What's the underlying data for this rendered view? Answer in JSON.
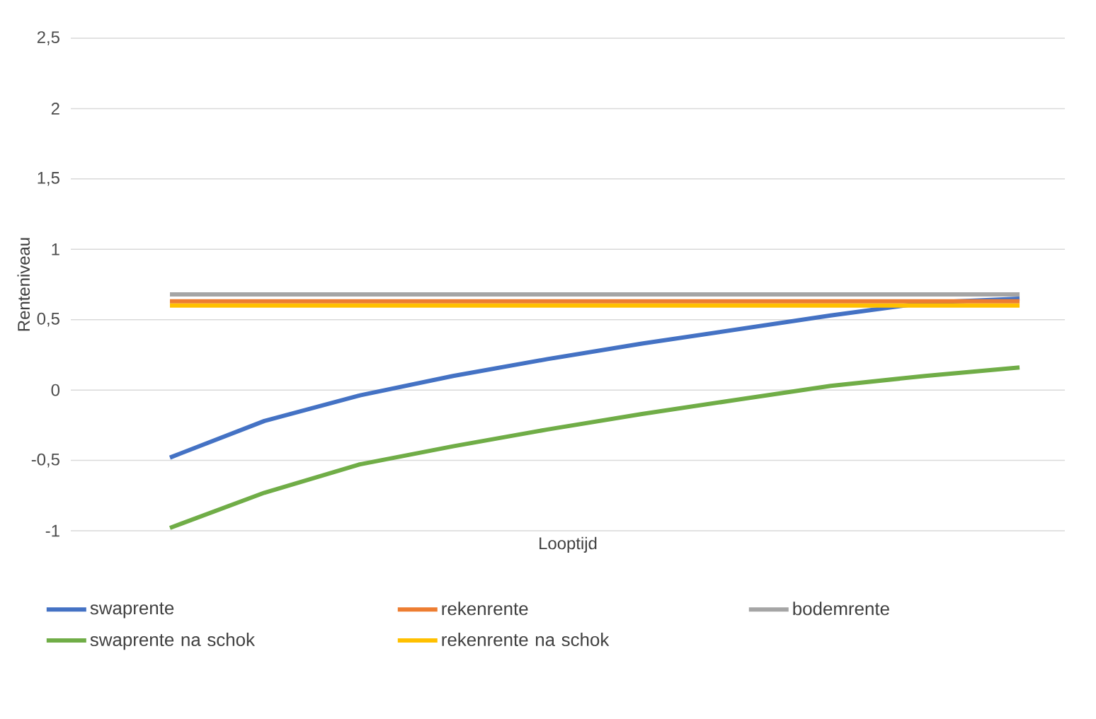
{
  "chart_data": {
    "type": "line",
    "xlabel": "Looptijd",
    "ylabel": "Renteniveau",
    "categories": [
      null,
      null,
      null,
      null,
      null,
      null,
      null,
      null,
      null,
      null
    ],
    "series": [
      {
        "name": "swaprente",
        "color": "#4472c4",
        "values": [
          -0.48,
          -0.22,
          -0.04,
          0.1,
          0.22,
          0.33,
          0.43,
          0.53,
          0.62,
          0.65
        ]
      },
      {
        "name": "rekenrente",
        "color": "#ed7d31",
        "values": [
          0.63,
          0.63,
          0.63,
          0.63,
          0.63,
          0.63,
          0.63,
          0.63,
          0.63,
          0.63
        ]
      },
      {
        "name": "bodemrente",
        "color": "#a5a5a5",
        "values": [
          0.68,
          0.68,
          0.68,
          0.68,
          0.68,
          0.68,
          0.68,
          0.68,
          0.68,
          0.68
        ]
      },
      {
        "name": "swaprente na schok",
        "color": "#70ad47",
        "values": [
          -0.98,
          -0.73,
          -0.53,
          -0.4,
          -0.28,
          -0.17,
          -0.07,
          0.03,
          0.1,
          0.16
        ]
      },
      {
        "name": "rekenrente na schok",
        "color": "#ffc000",
        "values": [
          0.6,
          0.6,
          0.6,
          0.6,
          0.6,
          0.6,
          0.6,
          0.6,
          0.6,
          0.6
        ]
      }
    ],
    "ylim": [
      -1,
      2.5
    ],
    "yticks": [
      {
        "value": -1,
        "label": "-1"
      },
      {
        "value": -0.5,
        "label": "-0,5"
      },
      {
        "value": 0,
        "label": "0"
      },
      {
        "value": 0.5,
        "label": "0,5"
      },
      {
        "value": 1,
        "label": "1"
      },
      {
        "value": 1.5,
        "label": "1,5"
      },
      {
        "value": 2,
        "label": "2"
      },
      {
        "value": 2.5,
        "label": "2,5"
      }
    ],
    "grid": "y",
    "legend": "bottom",
    "marker": "none",
    "line_style": "solid"
  }
}
